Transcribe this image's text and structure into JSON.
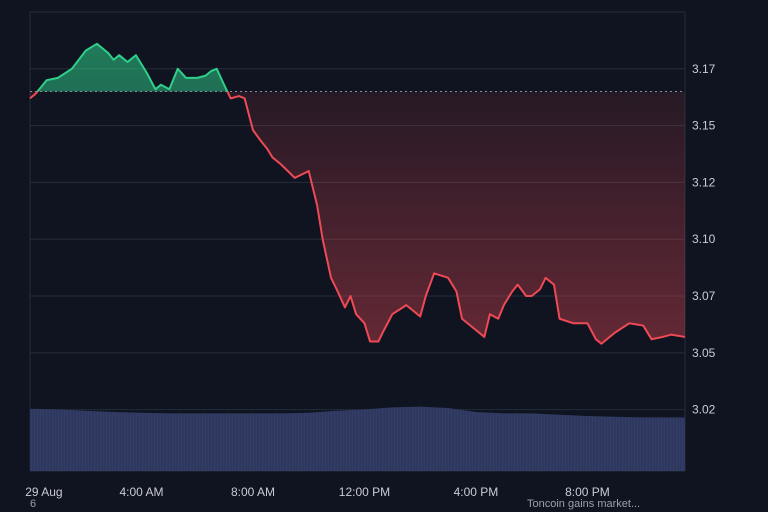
{
  "chart_data": {
    "type": "area",
    "title": "",
    "xlabel": "",
    "ylabel": "",
    "baseline": 3.16,
    "ylim": [
      2.993,
      3.195
    ],
    "xlim": [
      0,
      23.5
    ],
    "x_ticks": [
      {
        "x": 0.5,
        "label": "29 Aug"
      },
      {
        "x": 4,
        "label": "4:00 AM"
      },
      {
        "x": 8,
        "label": "8:00 AM"
      },
      {
        "x": 12,
        "label": "12:00 PM"
      },
      {
        "x": 16,
        "label": "4:00 PM"
      },
      {
        "x": 20,
        "label": "8:00 PM"
      }
    ],
    "y_ticks": [
      {
        "value": 3.17,
        "label": "3.17"
      },
      {
        "value": 3.145,
        "label": "3.15"
      },
      {
        "value": 3.12,
        "label": "3.12"
      },
      {
        "value": 3.095,
        "label": "3.10"
      },
      {
        "value": 3.07,
        "label": "3.07"
      },
      {
        "value": 3.045,
        "label": "3.05"
      },
      {
        "value": 3.02,
        "label": "3.02"
      }
    ],
    "colors": {
      "up": "#2fcf8a",
      "down": "#ee4a56",
      "volume": "#333d66",
      "grid": "#262d3b",
      "baseline": "#8a8f99"
    },
    "series": [
      {
        "x": [
          0,
          0.2,
          0.4,
          0.6,
          1,
          1.5,
          2,
          2.4,
          2.8,
          3,
          3.2,
          3.5,
          3.8,
          4,
          4.2,
          4.5,
          4.7,
          5,
          5.3,
          5.6,
          6,
          6.3,
          6.5,
          6.7,
          7,
          7.2,
          7.5,
          7.7,
          8,
          8.3,
          8.5,
          8.7,
          9,
          9.5,
          10,
          10.3,
          10.5,
          10.8,
          11,
          11.3,
          11.5,
          11.7,
          12,
          12.2,
          12.5,
          12.7,
          13,
          13.5,
          14,
          14.2,
          14.5,
          15,
          15.3,
          15.5,
          16,
          16.3,
          16.5,
          16.8,
          17,
          17.3,
          17.5,
          17.8,
          18,
          18.3,
          18.5,
          18.8,
          19,
          19.5,
          20,
          20.3,
          20.5,
          21,
          21.5,
          22,
          22.3,
          22.7,
          23,
          23.5
        ],
        "y": [
          3.157,
          3.159,
          3.162,
          3.165,
          3.166,
          3.17,
          3.178,
          3.181,
          3.177,
          3.174,
          3.176,
          3.173,
          3.176,
          3.172,
          3.168,
          3.161,
          3.163,
          3.161,
          3.17,
          3.166,
          3.166,
          3.167,
          3.169,
          3.17,
          3.162,
          3.157,
          3.158,
          3.157,
          3.143,
          3.138,
          3.135,
          3.131,
          3.128,
          3.122,
          3.125,
          3.11,
          3.095,
          3.078,
          3.073,
          3.065,
          3.07,
          3.062,
          3.058,
          3.05,
          3.05,
          3.055,
          3.062,
          3.066,
          3.061,
          3.07,
          3.08,
          3.078,
          3.072,
          3.06,
          3.055,
          3.052,
          3.062,
          3.06,
          3.066,
          3.072,
          3.075,
          3.07,
          3.07,
          3.073,
          3.078,
          3.075,
          3.06,
          3.058,
          3.058,
          3.051,
          3.049,
          3.054,
          3.058,
          3.057,
          3.051,
          3.052,
          3.053,
          3.052
        ]
      }
    ],
    "volume": {
      "x": [
        0,
        1,
        2,
        3,
        4,
        5,
        6,
        7,
        8,
        9,
        10,
        11,
        12,
        13,
        14,
        15,
        16,
        17,
        18,
        19,
        20,
        21,
        22,
        23.5
      ],
      "values": [
        0.93,
        0.92,
        0.9,
        0.88,
        0.87,
        0.86,
        0.86,
        0.86,
        0.86,
        0.86,
        0.87,
        0.9,
        0.92,
        0.95,
        0.96,
        0.94,
        0.88,
        0.86,
        0.86,
        0.84,
        0.82,
        0.81,
        0.8,
        0.8
      ]
    }
  },
  "footer": {
    "left": "6",
    "right": "Toncoin gains market..."
  }
}
